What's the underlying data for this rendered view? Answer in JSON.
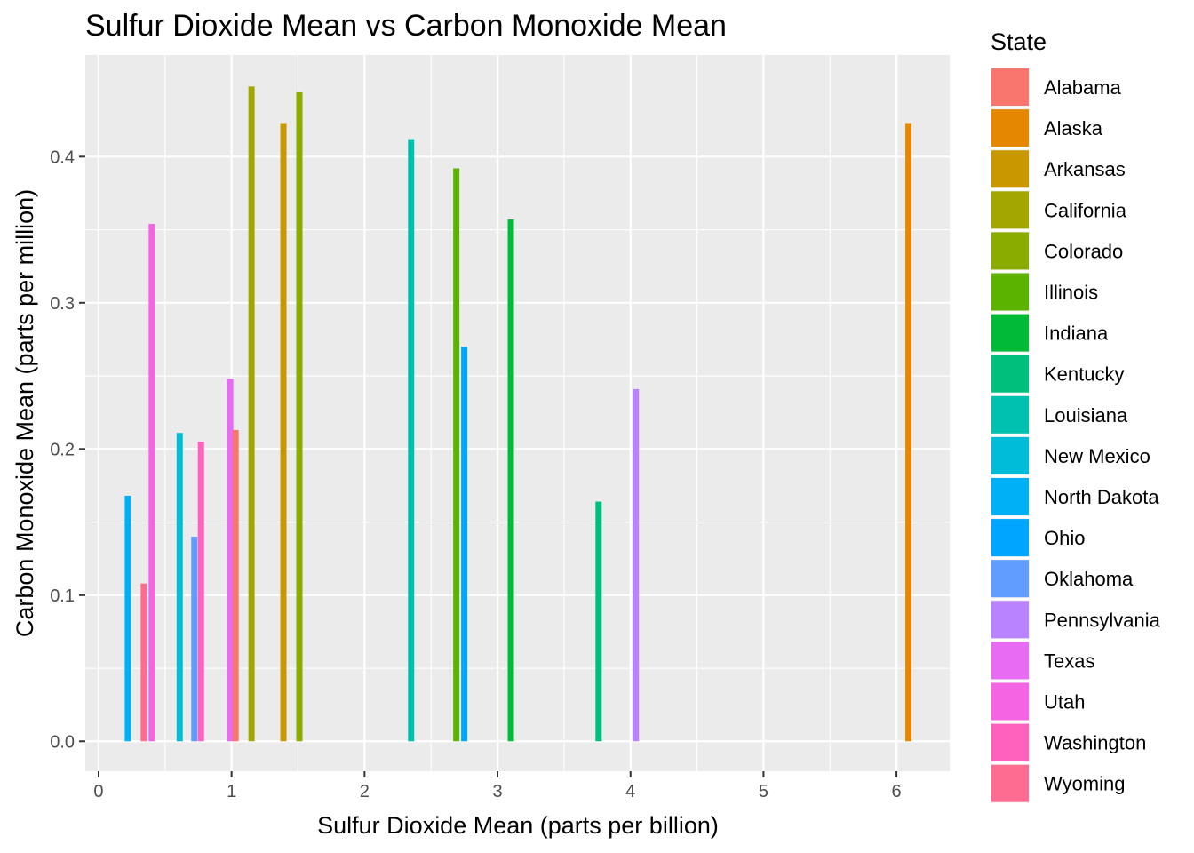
{
  "chart_data": {
    "type": "bar",
    "title": "Sulfur Dioxide Mean vs Carbon Monoxide Mean",
    "xlabel": "Sulfur Dioxide Mean (parts per billion)",
    "ylabel": "Carbon Monoxide Mean (parts per million)",
    "xlim": [
      -0.1,
      6.4
    ],
    "ylim": [
      -0.0205,
      0.4695
    ],
    "x_ticks": [
      0,
      1,
      2,
      3,
      4,
      5,
      6
    ],
    "x_tick_labels": [
      "0",
      "1",
      "2",
      "3",
      "4",
      "5",
      "6"
    ],
    "y_ticks": [
      0.0,
      0.1,
      0.2,
      0.3,
      0.4
    ],
    "y_tick_labels": [
      "0.0",
      "0.1",
      "0.2",
      "0.3",
      "0.4"
    ],
    "grid": true,
    "legend": {
      "title": "State",
      "placement": "right",
      "entries": [
        {
          "name": "Alabama",
          "color": "#F8766D"
        },
        {
          "name": "Alaska",
          "color": "#E58700"
        },
        {
          "name": "Arkansas",
          "color": "#C99800"
        },
        {
          "name": "California",
          "color": "#A3A500"
        },
        {
          "name": "Colorado",
          "color": "#8AAB00"
        },
        {
          "name": "Illinois",
          "color": "#5BB300"
        },
        {
          "name": "Indiana",
          "color": "#00BA38"
        },
        {
          "name": "Kentucky",
          "color": "#00BF7D"
        },
        {
          "name": "Louisiana",
          "color": "#00C0AF"
        },
        {
          "name": "New Mexico",
          "color": "#00BCD8"
        },
        {
          "name": "North Dakota",
          "color": "#00B0F6"
        },
        {
          "name": "Ohio",
          "color": "#00A5FF"
        },
        {
          "name": "Oklahoma",
          "color": "#619CFF"
        },
        {
          "name": "Pennsylvania",
          "color": "#B983FF"
        },
        {
          "name": "Texas",
          "color": "#E76BF3"
        },
        {
          "name": "Utah",
          "color": "#F564E3"
        },
        {
          "name": "Washington",
          "color": "#FF62BC"
        },
        {
          "name": "Wyoming",
          "color": "#FF6C91"
        }
      ]
    },
    "bars": [
      {
        "state": "North Dakota",
        "x": 0.22,
        "y": 0.168
      },
      {
        "state": "Wyoming",
        "x": 0.34,
        "y": 0.108
      },
      {
        "state": "Utah",
        "x": 0.4,
        "y": 0.354
      },
      {
        "state": "New Mexico",
        "x": 0.61,
        "y": 0.211
      },
      {
        "state": "Oklahoma",
        "x": 0.72,
        "y": 0.14
      },
      {
        "state": "Washington",
        "x": 0.77,
        "y": 0.205
      },
      {
        "state": "Texas",
        "x": 0.99,
        "y": 0.248
      },
      {
        "state": "Alabama",
        "x": 1.03,
        "y": 0.213
      },
      {
        "state": "California",
        "x": 1.15,
        "y": 0.448
      },
      {
        "state": "Arkansas",
        "x": 1.39,
        "y": 0.423
      },
      {
        "state": "Colorado",
        "x": 1.51,
        "y": 0.444
      },
      {
        "state": "Louisiana",
        "x": 2.35,
        "y": 0.412
      },
      {
        "state": "Illinois",
        "x": 2.69,
        "y": 0.392
      },
      {
        "state": "Ohio",
        "x": 2.75,
        "y": 0.27
      },
      {
        "state": "Indiana",
        "x": 3.1,
        "y": 0.357
      },
      {
        "state": "Kentucky",
        "x": 3.76,
        "y": 0.164
      },
      {
        "state": "Pennsylvania",
        "x": 4.04,
        "y": 0.241
      },
      {
        "state": "Alaska",
        "x": 6.09,
        "y": 0.423
      }
    ]
  }
}
